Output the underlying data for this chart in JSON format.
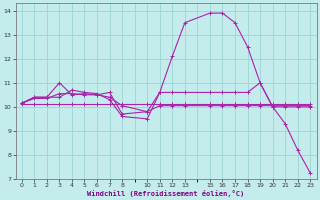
{
  "xlabel": "Windchill (Refroidissement éolien,°C)",
  "bg_color": "#c4eced",
  "grid_color": "#a0d8d8",
  "line_color": "#aa22aa",
  "xlim": [
    -0.5,
    23.5
  ],
  "ylim": [
    7,
    14.3
  ],
  "xticks": [
    0,
    1,
    2,
    3,
    4,
    5,
    6,
    7,
    8,
    10,
    11,
    12,
    13,
    15,
    16,
    17,
    18,
    19,
    20,
    21,
    22,
    23
  ],
  "yticks": [
    7,
    8,
    9,
    10,
    11,
    12,
    13,
    14
  ],
  "series": [
    {
      "x": [
        0,
        1,
        2,
        3,
        4,
        5,
        6,
        7,
        8,
        10,
        11,
        12,
        13,
        15,
        16,
        17,
        18,
        19,
        20,
        21,
        22,
        23
      ],
      "y": [
        10.15,
        10.4,
        10.4,
        10.4,
        10.7,
        10.6,
        10.55,
        10.3,
        9.6,
        9.5,
        10.6,
        12.1,
        13.5,
        13.9,
        13.9,
        13.5,
        12.5,
        11.0,
        10.0,
        9.3,
        8.2,
        7.25
      ]
    },
    {
      "x": [
        0,
        1,
        2,
        3,
        4,
        5,
        6,
        7,
        8,
        10,
        11,
        12,
        13,
        15,
        16,
        17,
        18,
        19,
        20,
        21,
        22,
        23
      ],
      "y": [
        10.15,
        10.4,
        10.4,
        11.0,
        10.5,
        10.55,
        10.5,
        10.6,
        9.7,
        9.8,
        10.6,
        10.6,
        10.6,
        10.6,
        10.6,
        10.6,
        10.6,
        11.0,
        10.0,
        10.0,
        10.0,
        10.0
      ]
    },
    {
      "x": [
        0,
        1,
        2,
        3,
        4,
        5,
        6,
        7,
        8,
        10,
        11,
        12,
        13,
        15,
        16,
        17,
        18,
        19,
        20,
        21,
        22,
        23
      ],
      "y": [
        10.15,
        10.35,
        10.35,
        10.55,
        10.55,
        10.5,
        10.5,
        10.4,
        10.05,
        9.8,
        10.05,
        10.05,
        10.05,
        10.05,
        10.05,
        10.05,
        10.05,
        10.05,
        10.05,
        10.05,
        10.05,
        10.05
      ]
    },
    {
      "x": [
        0,
        1,
        2,
        3,
        4,
        5,
        6,
        7,
        8,
        10,
        11,
        12,
        13,
        15,
        16,
        17,
        18,
        19,
        20,
        21,
        22,
        23
      ],
      "y": [
        10.1,
        10.1,
        10.1,
        10.1,
        10.1,
        10.1,
        10.1,
        10.1,
        10.1,
        10.1,
        10.1,
        10.1,
        10.1,
        10.1,
        10.1,
        10.1,
        10.1,
        10.1,
        10.1,
        10.1,
        10.1,
        10.1
      ]
    }
  ]
}
